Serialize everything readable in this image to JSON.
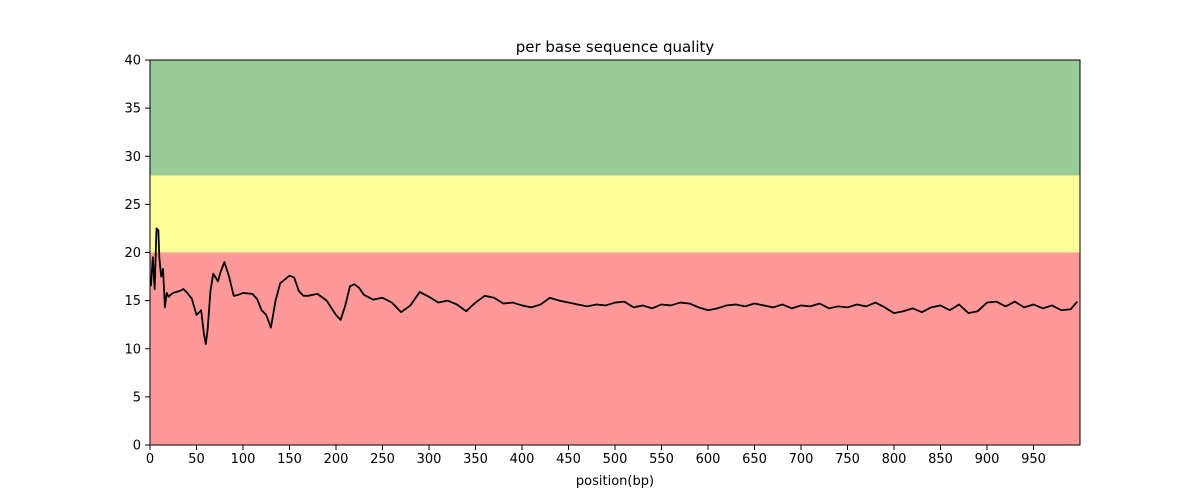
{
  "chart_data": {
    "type": "line",
    "title": "per base sequence quality",
    "xlabel": "position(bp)",
    "ylabel": "",
    "xlim": [
      0,
      1000
    ],
    "ylim": [
      0,
      40
    ],
    "x_ticks": [
      0,
      50,
      100,
      150,
      200,
      250,
      300,
      350,
      400,
      450,
      500,
      550,
      600,
      650,
      700,
      750,
      800,
      850,
      900,
      950
    ],
    "y_ticks": [
      0,
      5,
      10,
      15,
      20,
      25,
      30,
      35,
      40
    ],
    "grid": false,
    "legend": "none",
    "bands": [
      {
        "from": 0,
        "to": 20,
        "color": "#ff9999"
      },
      {
        "from": 20,
        "to": 28,
        "color": "#ffff99"
      },
      {
        "from": 28,
        "to": 40,
        "color": "#99cc99"
      }
    ],
    "series": [
      {
        "color": "#000000",
        "x": [
          1,
          3,
          5,
          7,
          9,
          10,
          12,
          14,
          16,
          18,
          20,
          22,
          25,
          28,
          32,
          36,
          40,
          45,
          50,
          55,
          58,
          60,
          62,
          65,
          68,
          70,
          73,
          76,
          80,
          85,
          90,
          95,
          100,
          110,
          115,
          120,
          125,
          130,
          135,
          140,
          145,
          150,
          155,
          160,
          165,
          170,
          180,
          190,
          200,
          205,
          210,
          215,
          220,
          225,
          230,
          240,
          250,
          260,
          270,
          280,
          290,
          300,
          310,
          320,
          330,
          340,
          350,
          360,
          370,
          380,
          390,
          400,
          410,
          420,
          430,
          440,
          450,
          460,
          470,
          480,
          490,
          500,
          510,
          520,
          530,
          540,
          550,
          560,
          570,
          580,
          590,
          600,
          610,
          620,
          630,
          640,
          650,
          660,
          670,
          680,
          690,
          700,
          710,
          720,
          730,
          740,
          750,
          760,
          770,
          780,
          790,
          800,
          810,
          820,
          830,
          840,
          850,
          860,
          870,
          880,
          890,
          900,
          910,
          920,
          930,
          940,
          950,
          960,
          970,
          980,
          990,
          997
        ],
        "y": [
          16.5,
          19.5,
          16.2,
          22.5,
          22.3,
          19.5,
          17.5,
          18.3,
          14.3,
          15.8,
          15.4,
          15.6,
          15.8,
          15.9,
          16.0,
          16.2,
          15.8,
          15.2,
          13.5,
          14.0,
          11.5,
          10.5,
          12.0,
          16.0,
          17.8,
          17.5,
          17.0,
          18.0,
          19.0,
          17.5,
          15.5,
          15.6,
          15.8,
          15.7,
          15.2,
          14.0,
          13.5,
          12.2,
          15.0,
          16.8,
          17.2,
          17.6,
          17.4,
          16.0,
          15.5,
          15.5,
          15.7,
          15.0,
          13.5,
          13.0,
          14.5,
          16.5,
          16.7,
          16.3,
          15.6,
          15.1,
          15.3,
          14.8,
          13.8,
          14.5,
          15.9,
          15.4,
          14.8,
          15.0,
          14.6,
          13.9,
          14.8,
          15.5,
          15.3,
          14.7,
          14.8,
          14.5,
          14.3,
          14.6,
          15.3,
          15.0,
          14.8,
          14.6,
          14.4,
          14.6,
          14.5,
          14.8,
          14.9,
          14.3,
          14.5,
          14.2,
          14.6,
          14.5,
          14.8,
          14.7,
          14.3,
          14.0,
          14.2,
          14.5,
          14.6,
          14.4,
          14.7,
          14.5,
          14.3,
          14.6,
          14.2,
          14.5,
          14.4,
          14.7,
          14.2,
          14.4,
          14.3,
          14.6,
          14.4,
          14.8,
          14.3,
          13.7,
          13.9,
          14.2,
          13.8,
          14.3,
          14.5,
          14.0,
          14.6,
          13.7,
          13.9,
          14.8,
          14.9,
          14.4,
          14.9,
          14.3,
          14.6,
          14.2,
          14.5,
          14.0,
          14.1,
          14.9
        ]
      }
    ]
  }
}
